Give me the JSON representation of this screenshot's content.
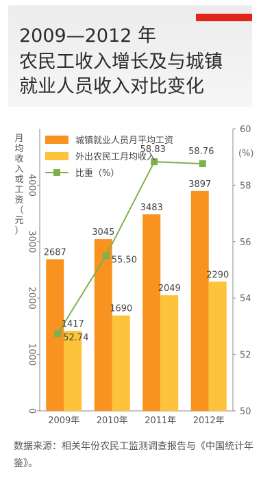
{
  "header": {
    "title_lines": [
      "2009—2012 年",
      "农民工收入增长及与城镇",
      "就业人员收入对比变化"
    ],
    "accent_color": "#e1251b"
  },
  "chart_data": {
    "type": "bar",
    "categories": [
      "2009年",
      "2010年",
      "2011年",
      "2012年"
    ],
    "series": [
      {
        "name": "城镇就业人员月平均工资",
        "type": "bar",
        "axis": "left",
        "color": "#f7931e",
        "values": [
          2687,
          3045,
          3483,
          3897
        ]
      },
      {
        "name": "外出农民工月均收入",
        "type": "bar",
        "axis": "left",
        "color": "#fcc33b",
        "values": [
          1417,
          1690,
          2049,
          2290
        ]
      },
      {
        "name": "比重（%）",
        "type": "line",
        "axis": "right",
        "color": "#7fb04f",
        "values": [
          52.74,
          55.5,
          58.83,
          58.76
        ]
      }
    ],
    "ylabel": "月均收入或工资（元）",
    "ylabel_right": "(%)",
    "ylim": [
      0,
      5000
    ],
    "yticks": [
      0,
      1000,
      2000,
      3000,
      4000
    ],
    "ylim_right": [
      50,
      60
    ],
    "yticks_right": [
      50,
      52,
      54,
      56,
      58,
      60
    ],
    "legend_position": "top-left",
    "grid": false
  },
  "footer": {
    "source": "数据来源：相关年份农民工监测调查报告与《中国统计年鉴》。"
  }
}
